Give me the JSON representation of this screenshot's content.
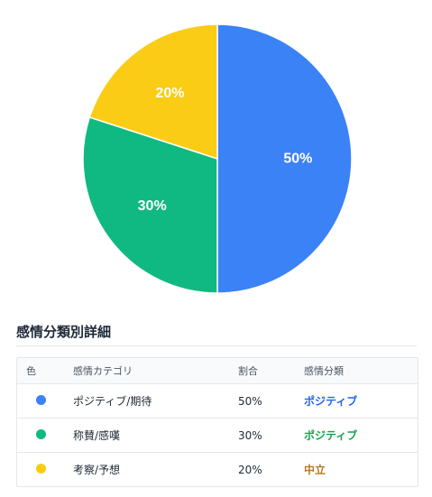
{
  "chart_data": {
    "type": "pie",
    "slices": [
      {
        "label": "ポジティブ/期待",
        "value": 50,
        "display": "50%",
        "color": "#3b82f6"
      },
      {
        "label": "称賛/感嘆",
        "value": 30,
        "display": "30%",
        "color": "#10b981"
      },
      {
        "label": "考察/予想",
        "value": 20,
        "display": "20%",
        "color": "#facc15"
      }
    ]
  },
  "details": {
    "title": "感情分類別詳細",
    "headers": {
      "color": "色",
      "category": "感情カテゴリ",
      "ratio": "割合",
      "classification": "感情分類"
    },
    "rows": [
      {
        "color": "#3b82f6",
        "category": "ポジティブ/期待",
        "ratio": "50%",
        "classification": "ポジティブ",
        "class_color": "#2563eb"
      },
      {
        "color": "#10b981",
        "category": "称賛/感嘆",
        "ratio": "30%",
        "classification": "ポジティブ",
        "class_color": "#16a34a"
      },
      {
        "color": "#facc15",
        "category": "考察/予想",
        "ratio": "20%",
        "classification": "中立",
        "class_color": "#b7791f"
      }
    ]
  }
}
